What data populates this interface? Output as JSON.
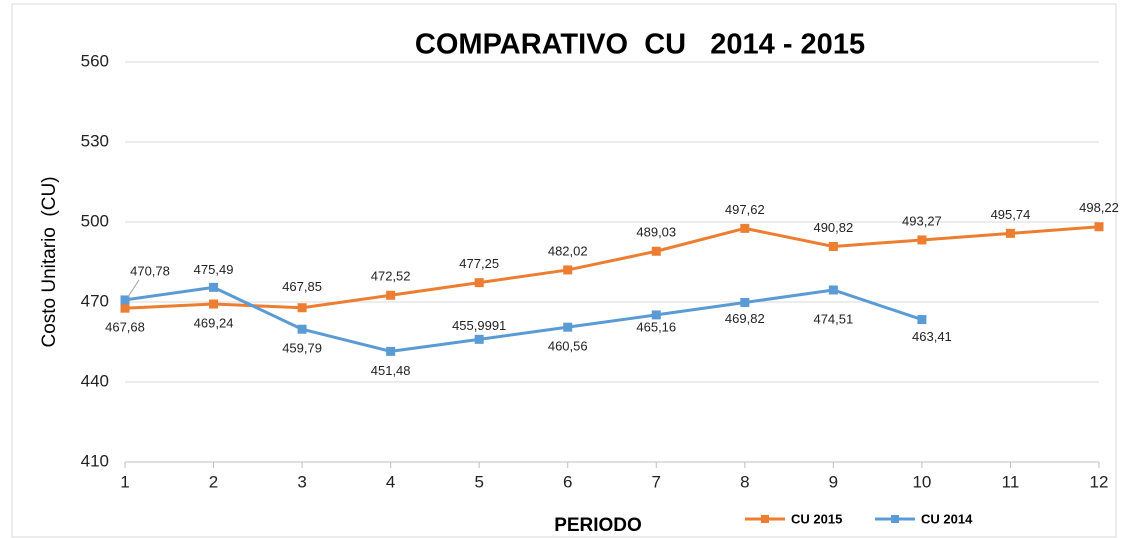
{
  "chart_data": {
    "type": "line",
    "title": "COMPARATIVO  CU   2014 - 2015",
    "x_label": "PERIODO",
    "y_label": "Costo Unitario  (CU)",
    "x": [
      1,
      2,
      3,
      4,
      5,
      6,
      7,
      8,
      9,
      10,
      11,
      12
    ],
    "xlim": [
      1,
      12
    ],
    "xticks": [
      1,
      2,
      3,
      4,
      5,
      6,
      7,
      8,
      9,
      10,
      11,
      12
    ],
    "ylim": [
      410,
      560
    ],
    "yticks": [
      410,
      440,
      470,
      500,
      530,
      560
    ],
    "grid": true,
    "series": [
      {
        "name": "CU 2015",
        "color": "#ed7d31",
        "values": [
          467.68,
          469.24,
          467.85,
          472.52,
          477.25,
          482.02,
          489.03,
          497.62,
          490.82,
          493.27,
          495.74,
          498.22
        ],
        "value_labels": [
          "467,68",
          "469,24",
          "467,85",
          "472,52",
          "477,25",
          "482,02",
          "489,03",
          "497,62",
          "490,82",
          "493,27",
          "495,74",
          "498,22"
        ]
      },
      {
        "name": "CU 2014",
        "color": "#5b9bd5",
        "values": [
          470.78,
          475.49,
          459.79,
          451.48,
          455.9991,
          460.56,
          465.16,
          469.82,
          474.51,
          463.41,
          null,
          null
        ],
        "value_labels": [
          "470,78",
          "475,49",
          "459,79",
          "451,48",
          "455,9991",
          "460,56",
          "465,16",
          "469,82",
          "474,51",
          "463,41",
          null,
          null
        ]
      }
    ]
  }
}
